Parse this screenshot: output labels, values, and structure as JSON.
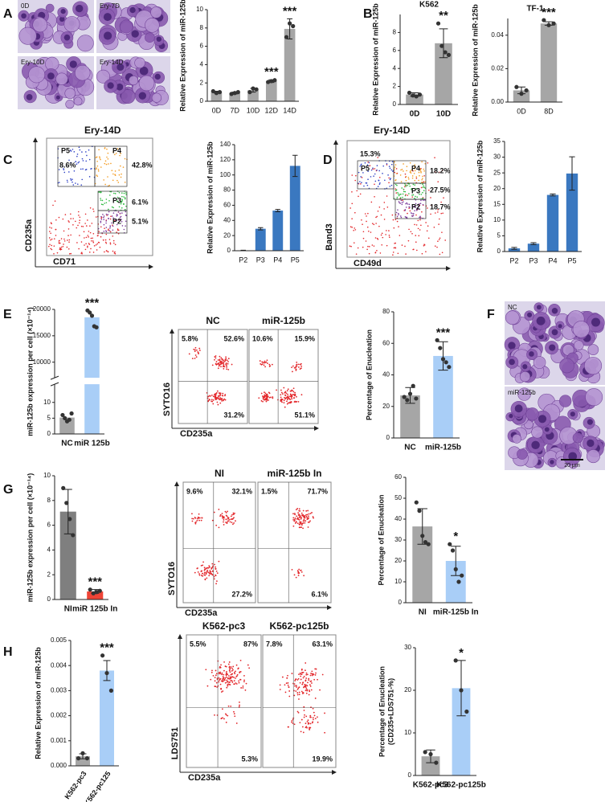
{
  "panel_labels": [
    "A",
    "B",
    "C",
    "D",
    "E",
    "F",
    "G",
    "H"
  ],
  "micrographs": [
    {
      "labels": [
        "0D",
        "Ery-7D",
        "Ery-10D",
        "Ery-14D"
      ]
    },
    {
      "labels": [
        "NC",
        "miR-125b"
      ],
      "scale": "20 μm"
    }
  ],
  "flow_plots": [
    {
      "title": "Ery-14D",
      "xlabel": "CD71",
      "ylabel": "CD235a",
      "gates": [
        {
          "name": "P5",
          "pct": "8.6%"
        },
        {
          "name": "P4",
          "pct": "42.8%"
        },
        {
          "name": "P3",
          "pct": "6.1%"
        },
        {
          "name": "P2",
          "pct": "5.1%"
        }
      ]
    },
    {
      "title": "Ery-14D",
      "xlabel": "CD49d",
      "ylabel": "Band3",
      "gates": [
        {
          "name": "P5",
          "pct": "15.3%"
        },
        {
          "name": "P4",
          "pct": "18.2%"
        },
        {
          "name": "P3",
          "pct": "27.5%"
        },
        {
          "name": "P2",
          "pct": "18.7%"
        }
      ]
    }
  ],
  "quad_plots": [
    {
      "xlabel": "CD235a",
      "ylabel": "SYTO16",
      "samples": [
        {
          "title": "NC",
          "quadrants": [
            "5.8%",
            "52.6%",
            "31.2%"
          ]
        },
        {
          "title": "miR-125b",
          "quadrants": [
            "10.6%",
            "15.9%",
            "51.1%"
          ]
        }
      ]
    },
    {
      "xlabel": "CD235a",
      "ylabel": "SYTO16",
      "samples": [
        {
          "title": "NI",
          "quadrants": [
            "9.6%",
            "32.1%",
            "27.2%"
          ]
        },
        {
          "title": "miR-125b In",
          "quadrants": [
            "1.5%",
            "71.7%",
            "6.1%"
          ]
        }
      ]
    },
    {
      "xlabel": "CD235a",
      "ylabel": "LDS751",
      "samples": [
        {
          "title": "K562-pc3",
          "quadrants": [
            "5.5%",
            "87%",
            "5.3%"
          ]
        },
        {
          "title": "K562-pc125b",
          "quadrants": [
            "7.8%",
            "63.1%",
            "19.9%"
          ]
        }
      ]
    }
  ],
  "chart_data": [
    {
      "type": "bar",
      "ylabel": "Relative Expression of miR-125b",
      "categories": [
        "0D",
        "7D",
        "10D",
        "12D",
        "14D"
      ],
      "values": [
        1.0,
        0.9,
        1.2,
        2.2,
        7.9
      ],
      "errors": [
        0.1,
        0.1,
        0.2,
        0.15,
        1.1
      ],
      "points": [
        [
          1.1,
          0.9,
          1.0
        ],
        [
          0.8,
          0.9,
          1.0
        ],
        [
          1.0,
          1.4,
          1.3
        ],
        [
          2.1,
          2.2,
          2.3
        ],
        [
          7.0,
          8.5,
          8.2
        ]
      ],
      "color": "#a6a6a6",
      "significance": [
        null,
        null,
        null,
        "***",
        "***"
      ],
      "ylim": [
        0,
        10
      ],
      "yticks": [
        0,
        2,
        4,
        6,
        8,
        10
      ]
    },
    {
      "type": "bar",
      "title": "K562",
      "ylabel": "Relative Expression of miR-125b",
      "categories": [
        "0D",
        "10D"
      ],
      "values": [
        1.1,
        6.8
      ],
      "errors": [
        0.2,
        1.6
      ],
      "points": [
        [
          1.3,
          1.0,
          0.9,
          1.1
        ],
        [
          9.0,
          6.5,
          5.8,
          5.5
        ]
      ],
      "color": "#a6a6a6",
      "significance": [
        null,
        "**"
      ],
      "ylim": [
        0,
        10
      ],
      "yticks": [
        0,
        2,
        4,
        6,
        8
      ]
    },
    {
      "type": "bar",
      "title": "TF-1",
      "ylabel": "Relative Expression of miR-125b",
      "categories": [
        "0D",
        "8D"
      ],
      "values": [
        0.007,
        0.047
      ],
      "errors": [
        0.002,
        0.001
      ],
      "points": [
        [
          0.009,
          0.005,
          0.007
        ],
        [
          0.049,
          0.046,
          0.047
        ]
      ],
      "color": "#a6a6a6",
      "significance": [
        null,
        "***"
      ],
      "ylim": [
        0,
        0.05
      ],
      "yticks": [
        {
          "value": 0,
          "label": "0.00"
        },
        {
          "value": 0.02,
          "label": "0.02"
        },
        {
          "value": 0.04,
          "label": "0.04"
        }
      ]
    },
    {
      "type": "bar",
      "ylabel": "Relative Expression of miR-125b",
      "categories": [
        "P2",
        "P3",
        "P4",
        "P5"
      ],
      "values": [
        0.5,
        29,
        53,
        112
      ],
      "errors": [
        0.1,
        1.5,
        1.5,
        14
      ],
      "color": "#3a78c0",
      "ylim": [
        0,
        140
      ],
      "yticks": [
        0,
        20,
        40,
        60,
        80,
        100,
        120,
        140
      ]
    },
    {
      "type": "bar",
      "ylabel": "Relative Expression of miR-125b",
      "categories": [
        "P2",
        "P3",
        "P4",
        "P5"
      ],
      "values": [
        1,
        2.5,
        18,
        24.8
      ],
      "errors": [
        0.3,
        0.3,
        0.3,
        5.3
      ],
      "color": "#3a78c0",
      "ylim": [
        0,
        35
      ],
      "yticks": [
        0,
        5,
        10,
        15,
        20,
        25,
        30,
        35
      ]
    },
    {
      "type": "bar",
      "ylabel": "miR-125b expression per cell (×10⁻¹⁴)",
      "categories": [
        "NC",
        "miR 125b"
      ],
      "values": [
        5.2,
        18500
      ],
      "points": [
        [
          6,
          5,
          4,
          4.5,
          6.5
        ],
        [
          19800,
          19400,
          18800,
          16800,
          16600
        ]
      ],
      "colors": [
        "#a6a6a6",
        "#a9cef7"
      ],
      "significance": [
        null,
        "***"
      ],
      "axis_break": true,
      "ylim": [
        0,
        15
      ],
      "ylim_upper": [
        7500,
        20000
      ],
      "yticks": [
        0,
        5,
        10,
        10000,
        15000,
        20000
      ]
    },
    {
      "type": "bar",
      "ylabel": "Percentage of Enucleation",
      "categories": [
        "NC",
        "miR-125b"
      ],
      "values": [
        27,
        52
      ],
      "errors": [
        5,
        9
      ],
      "points": [
        [
          26,
          24,
          28,
          33,
          25
        ],
        [
          62,
          57,
          50,
          48,
          45
        ]
      ],
      "colors": [
        "#a6a6a6",
        "#a9cef7"
      ],
      "significance": [
        null,
        "***"
      ],
      "ylim": [
        0,
        80
      ],
      "yticks": [
        0,
        20,
        40,
        60,
        80
      ]
    },
    {
      "type": "bar",
      "ylabel": "miR-125b expression per cell (×10⁻¹⁴)",
      "categories": [
        "NI",
        "miR 125b In"
      ],
      "values": [
        7.1,
        0.65
      ],
      "errors": [
        1.8,
        0.15
      ],
      "points": [
        [
          9.0,
          7.8,
          6.5,
          5.2
        ],
        [
          0.8,
          0.5,
          0.6,
          0.7
        ]
      ],
      "colors": [
        "#7f7f7f",
        "#ee4436"
      ],
      "significance": [
        null,
        "***"
      ],
      "ylim": [
        0,
        10
      ],
      "yticks": [
        0,
        2,
        4,
        6,
        8,
        10
      ]
    },
    {
      "type": "bar",
      "ylabel": "Percentage of Enucleation",
      "categories": [
        "NI",
        "miR-125b In"
      ],
      "values": [
        36.5,
        20
      ],
      "errors": [
        8.5,
        7
      ],
      "points": [
        [
          48,
          44,
          32,
          29,
          28
        ],
        [
          28,
          25,
          16,
          10,
          13
        ]
      ],
      "colors": [
        "#a6a6a6",
        "#a9cef7"
      ],
      "significance": [
        null,
        "*"
      ],
      "ylim": [
        0,
        60
      ],
      "yticks": [
        0,
        10,
        20,
        30,
        40,
        50,
        60
      ]
    },
    {
      "type": "bar",
      "ylabel": "Relative Expression of miR-125b",
      "categories": [
        "K562-pc3",
        "K562-pc125"
      ],
      "values": [
        0.00038,
        0.0038
      ],
      "errors": [
        0.0001,
        0.0004
      ],
      "points": [
        [
          0.0003,
          0.0005,
          0.0003
        ],
        [
          0.0044,
          0.0037,
          0.003
        ]
      ],
      "colors": [
        "#a6a6a6",
        "#a9cef7"
      ],
      "significance": [
        null,
        "***"
      ],
      "ylim": [
        0,
        0.005
      ],
      "yticks": [
        {
          "value": 0,
          "label": "0.000"
        },
        {
          "value": 0.001,
          "label": "0.001"
        },
        {
          "value": 0.002,
          "label": "0.002"
        },
        {
          "value": 0.003,
          "label": "0.003"
        },
        {
          "value": 0.004,
          "label": "0.004"
        },
        {
          "value": 0.005,
          "label": "0.005"
        }
      ]
    },
    {
      "type": "bar",
      "ylabel": [
        "Percentage of Enucleation",
        "(CD235+LDS751-%)"
      ],
      "categories": [
        "K562-pc3",
        "K562-pc125b"
      ],
      "values": [
        4.5,
        20.5
      ],
      "errors": [
        1.5,
        6.5
      ],
      "points": [
        [
          5.5,
          5,
          3
        ],
        [
          27,
          20,
          15
        ]
      ],
      "colors": [
        "#a6a6a6",
        "#a9cef7"
      ],
      "significance": [
        null,
        "*"
      ],
      "ylim": [
        0,
        30
      ],
      "yticks": [
        0,
        10,
        20,
        30
      ]
    }
  ]
}
